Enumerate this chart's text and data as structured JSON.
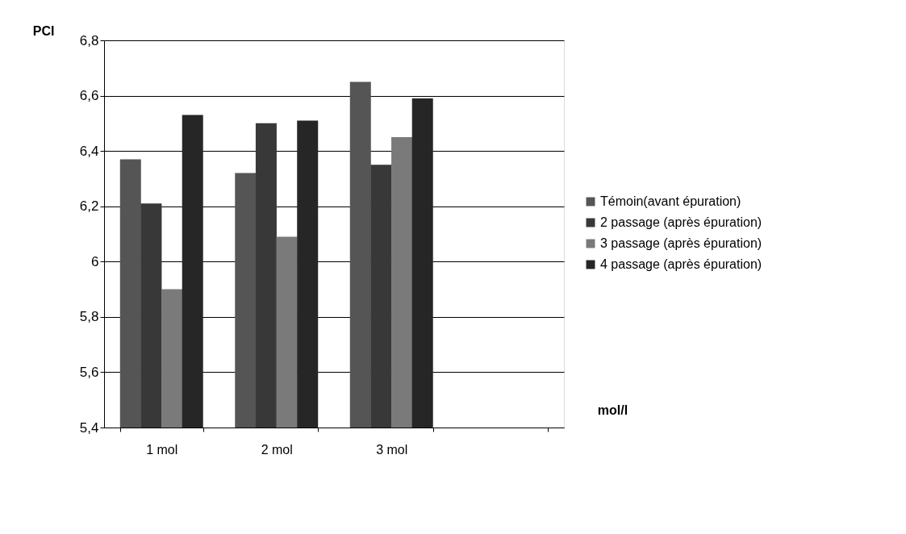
{
  "chart_data": {
    "type": "bar",
    "ylabel": "PCI",
    "xlabel": "mol/l",
    "categories": [
      "1 mol",
      "2 mol",
      "3 mol",
      null
    ],
    "series": [
      {
        "name": "Témoin(avant épuration)",
        "color": "#555555",
        "values": [
          6.37,
          6.32,
          6.65,
          null
        ]
      },
      {
        "name": "2 passage (après épuration)",
        "color": "#383838",
        "values": [
          6.21,
          6.5,
          6.35,
          null
        ]
      },
      {
        "name": "3 passage (après épuration)",
        "color": "#7a7a7a",
        "values": [
          5.9,
          6.09,
          6.45,
          null
        ]
      },
      {
        "name": "4 passage (après épuration)",
        "color": "#262626",
        "values": [
          6.53,
          6.51,
          6.59,
          null
        ]
      }
    ],
    "ylim": [
      5.4,
      6.8
    ],
    "yticks": [
      {
        "value": 5.4,
        "label": "5,4"
      },
      {
        "value": 5.6,
        "label": "5,6"
      },
      {
        "value": 5.8,
        "label": "5,8"
      },
      {
        "value": 6,
        "label": "6"
      },
      {
        "value": 6.2,
        "label": "6,2"
      },
      {
        "value": 6.4,
        "label": "6,4"
      },
      {
        "value": 6.6,
        "label": "6,6"
      },
      {
        "value": 6.8,
        "label": "6,8"
      }
    ],
    "grid": "y",
    "legend": "right"
  }
}
